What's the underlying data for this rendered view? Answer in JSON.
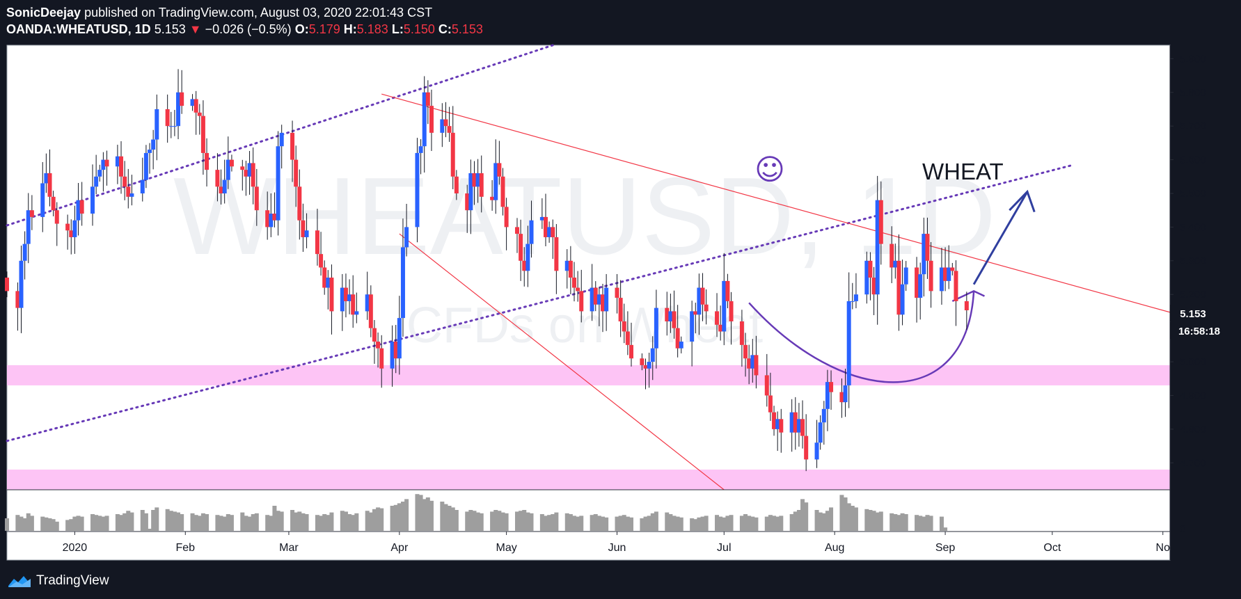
{
  "header": {
    "author": "SonicDeejay",
    "published_text": " published on TradingView.com, August 03, 2020 22:01:43 CST",
    "symbol": "OANDA:WHEATUSD, 1D",
    "last": "5.153",
    "change_arrow": "▼",
    "change": "−0.026 (−0.5%)",
    "o_label": "O:",
    "o_value": "5.179",
    "h_label": "H:",
    "h_value": "5.183",
    "l_label": "L:",
    "l_value": "5.150",
    "c_label": "C:",
    "c_value": "5.153"
  },
  "watermark": {
    "symbol": "WHEATUSD, 1D",
    "description": "CFDs on Wheat"
  },
  "annotation": {
    "emoji": "☺",
    "text": "WHEAT"
  },
  "price_label": "5.153",
  "countdown_label": "16:58:18",
  "footer": {
    "brand": "TradingView",
    "logo_icon": "tradingview-logo-icon"
  },
  "colors": {
    "up": "#2962ff",
    "down": "#f23645",
    "channel": "#673ab7",
    "trendline": "#f23645",
    "zone": "#fdc4f5",
    "volume": "#9e9e9e"
  },
  "chart_data": {
    "type": "candlestick",
    "title": "OANDA:WHEATUSD, 1D",
    "y_axis": {
      "ticks": [
        "5.900",
        "5.800",
        "5.700",
        "5.600",
        "5.500",
        "5.400",
        "5.300",
        "5.200",
        "5.000",
        "4.900",
        "4.800",
        "4.700"
      ],
      "range": [
        4.62,
        5.94
      ]
    },
    "x_axis": {
      "ticks": [
        "2020",
        "Feb",
        "Mar",
        "Apr",
        "May",
        "Jun",
        "Jul",
        "Aug",
        "Sep",
        "Oct",
        "No"
      ],
      "date_range": [
        "2019-12-13",
        "2020-11-03"
      ]
    },
    "volume_axis_label": "0",
    "last_price": 5.153,
    "zones": [
      {
        "from": 4.93,
        "to": 4.99
      },
      {
        "from": 4.62,
        "to": 4.68
      }
    ],
    "closes": [
      5.21,
      5.16,
      5.3,
      5.35,
      5.45,
      5.43,
      5.53,
      5.56,
      5.49,
      5.45,
      5.41,
      5.39,
      5.37,
      5.42,
      5.48,
      5.44,
      5.52,
      5.55,
      5.57,
      5.6,
      5.58,
      5.61,
      5.55,
      5.52,
      5.49,
      5.5,
      5.54,
      5.62,
      5.63,
      5.66,
      5.75,
      5.7,
      5.7,
      5.7,
      5.8,
      5.76,
      5.78,
      5.74,
      5.73,
      5.62,
      5.57,
      5.52,
      5.5,
      5.54,
      5.6,
      5.58,
      5.57,
      5.55,
      5.59,
      5.52,
      5.45,
      5.4,
      5.44,
      5.42,
      5.64,
      5.68,
      5.6,
      5.52,
      5.42,
      5.37,
      5.39,
      5.32,
      5.28,
      5.22,
      5.25,
      5.15,
      5.22,
      5.18,
      5.2,
      5.14,
      5.15,
      5.2,
      5.1,
      5.06,
      5.04,
      4.98,
      5.06,
      5.01,
      5.13,
      5.34,
      5.4,
      5.62,
      5.64,
      5.8,
      5.76,
      5.68,
      5.72,
      5.7,
      5.68,
      5.55,
      5.5,
      5.45,
      5.56,
      5.52,
      5.56,
      5.49,
      5.48,
      5.59,
      5.55,
      5.46,
      5.4,
      5.38,
      5.3,
      5.27,
      5.35,
      5.42,
      5.43,
      5.37,
      5.4,
      5.37,
      5.27,
      5.3,
      5.25,
      5.22,
      5.21,
      5.15,
      5.22,
      5.17,
      5.2,
      5.15,
      5.22,
      5.19,
      5.12,
      5.09,
      5.05,
      5.01,
      4.99,
      4.98,
      5.0,
      5.04,
      5.16,
      5.12,
      5.15,
      5.1,
      5.04,
      5.06,
      5.15,
      5.14,
      5.22,
      5.17,
      5.15,
      5.11,
      5.09,
      5.24,
      5.18,
      5.12,
      5.05,
      5.01,
      4.98,
      5.02,
      4.96,
      4.9,
      4.85,
      4.8,
      4.83,
      4.79,
      4.85,
      4.79,
      4.83,
      4.78,
      4.71,
      4.76,
      4.82,
      4.86,
      4.94,
      4.91,
      4.88,
      4.93,
      5.18,
      5.18,
      5.2,
      5.3,
      5.25,
      5.2,
      5.48,
      5.35,
      5.28,
      5.3,
      5.14,
      5.23,
      5.28,
      5.19,
      5.26,
      5.38,
      5.3,
      5.21,
      5.28,
      5.24,
      5.28,
      5.27,
      5.18,
      5.153
    ],
    "volumes": [
      0.3,
      0.38,
      0.34,
      0.3,
      0.42,
      0.36,
      0.34,
      0.32,
      0.3,
      0.28,
      0.22,
      0.26,
      0.28,
      0.34,
      0.36,
      0.34,
      0.4,
      0.38,
      0.36,
      0.34,
      0.36,
      0.4,
      0.38,
      0.42,
      0.48,
      0.44,
      0.5,
      0.42,
      0.05,
      0.5,
      0.56,
      0.52,
      0.48,
      0.46,
      0.44,
      0.4,
      0.42,
      0.38,
      0.36,
      0.42,
      0.4,
      0.38,
      0.36,
      0.34,
      0.4,
      0.38,
      0.44,
      0.36,
      0.34,
      0.4,
      0.42,
      0.38,
      0.36,
      0.6,
      0.48,
      0.46,
      0.5,
      0.44,
      0.46,
      0.42,
      0.4,
      0.38,
      0.36,
      0.4,
      0.38,
      0.44,
      0.48,
      0.46,
      0.4,
      0.38,
      0.42,
      0.48,
      0.44,
      0.52,
      0.56,
      0.54,
      0.6,
      0.62,
      0.66,
      0.7,
      0.76,
      0.88,
      0.86,
      0.76,
      0.8,
      0.72,
      0.7,
      0.64,
      0.6,
      0.56,
      0.5,
      0.46,
      0.5,
      0.48,
      0.44,
      0.42,
      0.46,
      0.5,
      0.48,
      0.44,
      0.42,
      0.46,
      0.48,
      0.5,
      0.44,
      0.42,
      0.4,
      0.36,
      0.38,
      0.4,
      0.44,
      0.42,
      0.4,
      0.36,
      0.34,
      0.36,
      0.38,
      0.4,
      0.36,
      0.34,
      0.32,
      0.34,
      0.36,
      0.38,
      0.34,
      0.32,
      0.3,
      0.34,
      0.36,
      0.42,
      0.46,
      0.44,
      0.4,
      0.36,
      0.34,
      0.32,
      0.3,
      0.28,
      0.32,
      0.34,
      0.36,
      0.38,
      0.34,
      0.32,
      0.36,
      0.38,
      0.36,
      0.4,
      0.36,
      0.34,
      0.32,
      0.34,
      0.38,
      0.36,
      0.34,
      0.36,
      0.4,
      0.46,
      0.5,
      0.76,
      0.68,
      0.5,
      0.44,
      0.42,
      0.48,
      0.56,
      0.86,
      0.8,
      0.66,
      0.6,
      0.56,
      0.52,
      0.5,
      0.48,
      0.44,
      0.46,
      0.42,
      0.4,
      0.38,
      0.42,
      0.4,
      0.38,
      0.36,
      0.34,
      0.38,
      0.36,
      0.34,
      0.08
    ]
  }
}
